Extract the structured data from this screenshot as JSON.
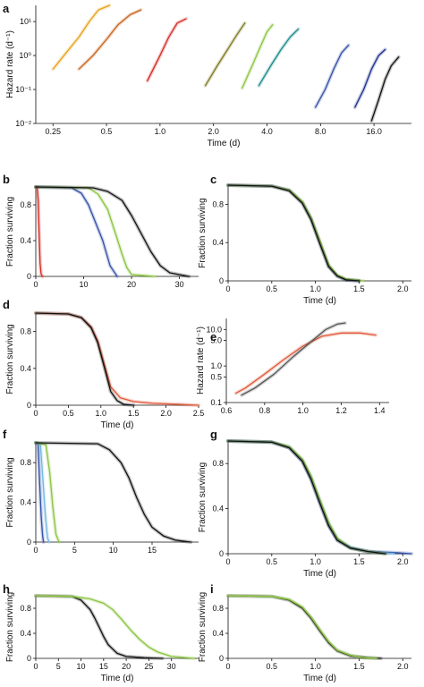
{
  "figure": {
    "panels": [
      {
        "id": "a",
        "label": "a"
      },
      {
        "id": "b",
        "label": "b"
      },
      {
        "id": "c",
        "label": "c"
      },
      {
        "id": "d",
        "label": "d"
      },
      {
        "id": "e",
        "label": "e"
      },
      {
        "id": "f",
        "label": "f"
      },
      {
        "id": "g",
        "label": "g"
      },
      {
        "id": "h",
        "label": "h"
      },
      {
        "id": "i",
        "label": "i"
      }
    ]
  },
  "chart_data": [
    {
      "panel": "a",
      "type": "line",
      "title": "",
      "xlabel": "Time (d)",
      "ylabel": "Hazard rate (d⁻¹)",
      "xscale": "log",
      "yscale": "log",
      "xlim": [
        0.2,
        26
      ],
      "ylim": [
        0.01,
        30
      ],
      "xticks": [
        0.25,
        0.5,
        1.0,
        2.0,
        4.0,
        8.0,
        16.0
      ],
      "xticklabels": [
        "0.25",
        "0.5",
        "1.0",
        "2.0",
        "4.0",
        "8.0",
        "16.0"
      ],
      "yticks": [
        0.01,
        0.1,
        1,
        10
      ],
      "yticklabels": [
        "10⁻²",
        "10⁻¹",
        "10⁰",
        "10¹"
      ],
      "series": [
        {
          "color": "#e8a21a",
          "x": [
            0.25,
            0.3,
            0.35,
            0.4,
            0.45,
            0.52
          ],
          "y": [
            0.4,
            1.3,
            3.5,
            10,
            22,
            30
          ]
        },
        {
          "color": "#c7641c",
          "x": [
            0.35,
            0.42,
            0.5,
            0.58,
            0.68,
            0.78
          ],
          "y": [
            0.4,
            1.0,
            3.0,
            8,
            16,
            22
          ]
        },
        {
          "color": "#d42a24",
          "x": [
            0.85,
            1.0,
            1.12,
            1.25,
            1.4
          ],
          "y": [
            0.18,
            1.0,
            3.5,
            9,
            12
          ]
        },
        {
          "color": "#7f7a1f",
          "x": [
            1.8,
            2.1,
            2.4,
            2.7,
            3.0
          ],
          "y": [
            0.13,
            0.5,
            1.5,
            4,
            9
          ]
        },
        {
          "color": "#8ac541",
          "x": [
            2.9,
            3.3,
            3.7,
            4.0,
            4.3
          ],
          "y": [
            0.11,
            0.5,
            2.0,
            5,
            8
          ]
        },
        {
          "color": "#1e8a8a",
          "x": [
            3.6,
            4.2,
            4.8,
            5.4,
            6.0
          ],
          "y": [
            0.13,
            0.5,
            1.5,
            3.5,
            6
          ]
        },
        {
          "color": "#3450a8",
          "x": [
            7.5,
            8.5,
            9.5,
            10.5,
            11.5
          ],
          "y": [
            0.03,
            0.1,
            0.4,
            1.2,
            2.0
          ]
        },
        {
          "color": "#1c2f8a",
          "x": [
            12.5,
            14.0,
            15.5,
            17.0,
            18.5
          ],
          "y": [
            0.03,
            0.1,
            0.4,
            1.0,
            1.5
          ]
        },
        {
          "color": "#111111",
          "x": [
            15.5,
            17.0,
            18.5,
            20.0,
            22.0
          ],
          "y": [
            0.012,
            0.05,
            0.2,
            0.5,
            0.9
          ]
        }
      ]
    },
    {
      "panel": "b",
      "type": "line",
      "xlabel": "",
      "ylabel": "Fraction surviving",
      "xlim": [
        0,
        34
      ],
      "ylim": [
        0,
        1
      ],
      "xticks": [
        0,
        10,
        20,
        30
      ],
      "xticklabels": [
        "0",
        "10",
        "20",
        "30"
      ],
      "yticks": [
        0,
        0.4,
        0.8
      ],
      "yticklabels": [
        "0",
        "0.4",
        "0.8"
      ],
      "series": [
        {
          "color": "#d42a24",
          "x": [
            0,
            0.3,
            0.5,
            0.7,
            0.9,
            1.1,
            1.4
          ],
          "y": [
            1,
            0.99,
            0.85,
            0.5,
            0.15,
            0.03,
            0
          ]
        },
        {
          "color": "#3450a8",
          "x": [
            0,
            7.5,
            9.5,
            11,
            12.5,
            14,
            15.5,
            17
          ],
          "y": [
            1,
            0.99,
            0.93,
            0.8,
            0.6,
            0.4,
            0.12,
            0
          ]
        },
        {
          "color": "#8ac541",
          "x": [
            0,
            11,
            13,
            15,
            17,
            18,
            19,
            20,
            25
          ],
          "y": [
            1,
            0.99,
            0.92,
            0.75,
            0.42,
            0.25,
            0.1,
            0.02,
            0
          ]
        },
        {
          "color": "#111111",
          "x": [
            0,
            12,
            15,
            18,
            20,
            22,
            24,
            26,
            28,
            32
          ],
          "y": [
            1,
            0.99,
            0.95,
            0.85,
            0.68,
            0.48,
            0.28,
            0.12,
            0.04,
            0
          ]
        }
      ]
    },
    {
      "panel": "c",
      "type": "line",
      "xlabel": "Time (d)",
      "ylabel": "Fraction surviving",
      "xlim": [
        0,
        2.1
      ],
      "ylim": [
        0,
        1
      ],
      "xticks": [
        0,
        0.5,
        1.0,
        1.5,
        2.0
      ],
      "xticklabels": [
        "0",
        "0.5",
        "1.0",
        "1.5",
        "2.0"
      ],
      "yticks": [
        0,
        0.4,
        0.8
      ],
      "yticklabels": [
        "0",
        "0.4",
        "0.8"
      ],
      "series": [
        {
          "color": "#3450a8",
          "x": [
            0,
            0.5,
            0.7,
            0.85,
            0.95,
            1.05,
            1.15,
            1.25,
            1.35,
            1.5
          ],
          "y": [
            1,
            0.99,
            0.95,
            0.82,
            0.65,
            0.4,
            0.15,
            0.05,
            0.01,
            0
          ]
        },
        {
          "color": "#8ac541",
          "x": [
            0,
            0.5,
            0.7,
            0.85,
            0.95,
            1.05,
            1.15,
            1.25,
            1.35,
            1.55
          ],
          "y": [
            1,
            0.99,
            0.95,
            0.83,
            0.66,
            0.42,
            0.17,
            0.06,
            0.02,
            0
          ]
        },
        {
          "color": "#111111",
          "x": [
            0,
            0.5,
            0.7,
            0.85,
            0.95,
            1.05,
            1.15,
            1.25,
            1.35,
            1.5
          ],
          "y": [
            1,
            0.99,
            0.94,
            0.81,
            0.64,
            0.39,
            0.15,
            0.05,
            0.01,
            0
          ]
        }
      ]
    },
    {
      "panel": "d",
      "type": "line",
      "xlabel": "Time (d)",
      "ylabel": "Fraction surviving",
      "xlim": [
        0,
        2.5
      ],
      "ylim": [
        0,
        1
      ],
      "xticks": [
        0,
        0.5,
        1.0,
        1.5,
        2.0,
        2.5
      ],
      "xticklabels": [
        "0",
        "0.5",
        "1.0",
        "1.5",
        "2.0",
        "2.5"
      ],
      "yticks": [
        0,
        0.4,
        0.8
      ],
      "yticklabels": [
        "0",
        "0.4",
        "0.8"
      ],
      "series": [
        {
          "color": "#e05a3a",
          "x": [
            0,
            0.5,
            0.7,
            0.85,
            0.95,
            1.05,
            1.15,
            1.3,
            1.5,
            1.8,
            2.2,
            2.5
          ],
          "y": [
            1,
            0.99,
            0.95,
            0.85,
            0.7,
            0.45,
            0.2,
            0.08,
            0.04,
            0.02,
            0.01,
            0
          ]
        },
        {
          "color": "#111111",
          "x": [
            0,
            0.5,
            0.7,
            0.85,
            0.95,
            1.05,
            1.15,
            1.25,
            1.35,
            1.5
          ],
          "y": [
            1,
            0.99,
            0.95,
            0.84,
            0.68,
            0.42,
            0.15,
            0.05,
            0.01,
            0
          ]
        }
      ]
    },
    {
      "panel": "e",
      "type": "line",
      "xlabel": "",
      "ylabel": "Hazard rate (d⁻¹)",
      "yscale": "log",
      "xlim": [
        0.6,
        1.45
      ],
      "ylim": [
        0.1,
        20
      ],
      "xticks": [
        0.6,
        0.8,
        1.0,
        1.2,
        1.4
      ],
      "xticklabels": [
        "0.6",
        "0.8",
        "1.0",
        "1.2",
        "1.4"
      ],
      "yticks": [
        0.1,
        0.5,
        1.0,
        5.0,
        10.0
      ],
      "yticklabels": [
        "0.1",
        "0.5",
        "1.0",
        "5.0",
        "10.0"
      ],
      "series": [
        {
          "color": "#e05a3a",
          "x": [
            0.65,
            0.7,
            0.8,
            0.9,
            1.0,
            1.1,
            1.2,
            1.3,
            1.38
          ],
          "y": [
            0.18,
            0.25,
            0.6,
            1.5,
            3.5,
            6.5,
            8,
            8,
            7
          ]
        },
        {
          "color": "#555555",
          "x": [
            0.68,
            0.75,
            0.85,
            0.95,
            1.05,
            1.12,
            1.18,
            1.22
          ],
          "y": [
            0.16,
            0.25,
            0.6,
            1.8,
            5,
            10,
            14,
            15
          ]
        }
      ]
    },
    {
      "panel": "f",
      "type": "line",
      "xlabel": "",
      "ylabel": "Fraction surviving",
      "xlim": [
        0,
        21
      ],
      "ylim": [
        0,
        1
      ],
      "xticks": [
        0,
        5,
        10,
        15
      ],
      "xticklabels": [
        "0",
        "5",
        "10",
        "15"
      ],
      "yticks": [
        0,
        0.4,
        0.8
      ],
      "yticklabels": [
        "0",
        "0.4",
        "0.8"
      ],
      "series": [
        {
          "color": "#3450a8",
          "x": [
            0,
            0.3,
            0.5,
            0.7,
            0.9,
            1.0
          ],
          "y": [
            1,
            0.98,
            0.6,
            0.25,
            0.05,
            0
          ]
        },
        {
          "color": "#72b8e0",
          "x": [
            0,
            0.6,
            0.9,
            1.2,
            1.5,
            1.7
          ],
          "y": [
            1,
            0.98,
            0.65,
            0.3,
            0.05,
            0
          ]
        },
        {
          "color": "#8ac541",
          "x": [
            0,
            1.3,
            1.8,
            2.2,
            2.6,
            3.0
          ],
          "y": [
            1,
            0.98,
            0.7,
            0.35,
            0.08,
            0
          ]
        },
        {
          "color": "#111111",
          "x": [
            0,
            8,
            9.5,
            11,
            12,
            13,
            14,
            15,
            16.5,
            18,
            20
          ],
          "y": [
            1,
            0.99,
            0.93,
            0.8,
            0.65,
            0.45,
            0.28,
            0.15,
            0.06,
            0.02,
            0
          ]
        }
      ]
    },
    {
      "panel": "g",
      "type": "line",
      "xlabel": "Time (d)",
      "ylabel": "Fraction surviving",
      "xlim": [
        0,
        2.1
      ],
      "ylim": [
        0,
        1
      ],
      "xticks": [
        0,
        0.5,
        1.0,
        1.5,
        2.0
      ],
      "xticklabels": [
        "0",
        "0.5",
        "1.0",
        "1.5",
        "2.0"
      ],
      "yticks": [
        0,
        0.4,
        0.8
      ],
      "yticklabels": [
        "0",
        "0.4",
        "0.8"
      ],
      "series": [
        {
          "color": "#3450a8",
          "x": [
            0,
            0.5,
            0.7,
            0.85,
            0.95,
            1.05,
            1.15,
            1.25,
            1.4,
            1.6,
            1.9,
            2.1
          ],
          "y": [
            1,
            0.99,
            0.94,
            0.82,
            0.66,
            0.45,
            0.25,
            0.12,
            0.05,
            0.02,
            0.01,
            0
          ]
        },
        {
          "color": "#72b8e0",
          "x": [
            0,
            0.5,
            0.7,
            0.85,
            0.95,
            1.05,
            1.15,
            1.25,
            1.4,
            1.6,
            1.9
          ],
          "y": [
            1,
            0.99,
            0.95,
            0.83,
            0.68,
            0.47,
            0.27,
            0.13,
            0.06,
            0.02,
            0
          ]
        },
        {
          "color": "#8ac541",
          "x": [
            0,
            0.5,
            0.7,
            0.85,
            0.95,
            1.05,
            1.15,
            1.25,
            1.4,
            1.6,
            1.8
          ],
          "y": [
            1,
            0.99,
            0.95,
            0.84,
            0.69,
            0.48,
            0.28,
            0.14,
            0.05,
            0.02,
            0
          ]
        },
        {
          "color": "#111111",
          "x": [
            0,
            0.5,
            0.7,
            0.85,
            0.95,
            1.05,
            1.15,
            1.25,
            1.4,
            1.6,
            1.8
          ],
          "y": [
            1,
            0.99,
            0.94,
            0.82,
            0.66,
            0.45,
            0.25,
            0.12,
            0.05,
            0.02,
            0
          ]
        }
      ]
    },
    {
      "panel": "h",
      "type": "line",
      "xlabel": "Time (d)",
      "ylabel": "Fraction surviving",
      "xlim": [
        0,
        36
      ],
      "ylim": [
        0,
        1
      ],
      "xticks": [
        0,
        5,
        10,
        15,
        20,
        25,
        30
      ],
      "xticklabels": [
        "0",
        "5",
        "10",
        "15",
        "20",
        "25",
        "30"
      ],
      "yticks": [
        0,
        0.4,
        0.8
      ],
      "yticklabels": [
        "0",
        "0.4",
        "0.8"
      ],
      "series": [
        {
          "color": "#111111",
          "x": [
            0,
            8,
            10,
            12,
            13,
            14,
            15,
            16,
            18,
            20,
            24,
            28
          ],
          "y": [
            1,
            0.99,
            0.93,
            0.78,
            0.65,
            0.5,
            0.35,
            0.22,
            0.08,
            0.03,
            0.01,
            0
          ]
        },
        {
          "color": "#8ac541",
          "x": [
            0,
            8,
            12,
            15,
            17,
            19,
            21,
            23,
            25,
            27,
            30,
            35
          ],
          "y": [
            1,
            0.99,
            0.95,
            0.88,
            0.78,
            0.62,
            0.45,
            0.3,
            0.18,
            0.1,
            0.03,
            0
          ]
        }
      ]
    },
    {
      "panel": "i",
      "type": "line",
      "xlabel": "Time (d)",
      "ylabel": "Fraction surviving",
      "xlim": [
        0,
        2.1
      ],
      "ylim": [
        0,
        1
      ],
      "xticks": [
        0,
        0.5,
        1.0,
        1.5,
        2.0
      ],
      "xticklabels": [
        "0",
        "0.5",
        "1.0",
        "1.5",
        "2.0"
      ],
      "yticks": [
        0,
        0.4,
        0.8
      ],
      "yticklabels": [
        "0",
        "0.4",
        "0.8"
      ],
      "series": [
        {
          "color": "#111111",
          "x": [
            0,
            0.5,
            0.7,
            0.85,
            0.95,
            1.05,
            1.15,
            1.25,
            1.4,
            1.6,
            1.75
          ],
          "y": [
            1,
            0.99,
            0.93,
            0.8,
            0.64,
            0.44,
            0.25,
            0.12,
            0.04,
            0.01,
            0
          ]
        },
        {
          "color": "#8ac541",
          "x": [
            0,
            0.5,
            0.7,
            0.85,
            0.95,
            1.05,
            1.15,
            1.25,
            1.4,
            1.55,
            1.7
          ],
          "y": [
            1,
            0.99,
            0.94,
            0.82,
            0.66,
            0.46,
            0.27,
            0.13,
            0.05,
            0.01,
            0
          ]
        }
      ]
    }
  ]
}
